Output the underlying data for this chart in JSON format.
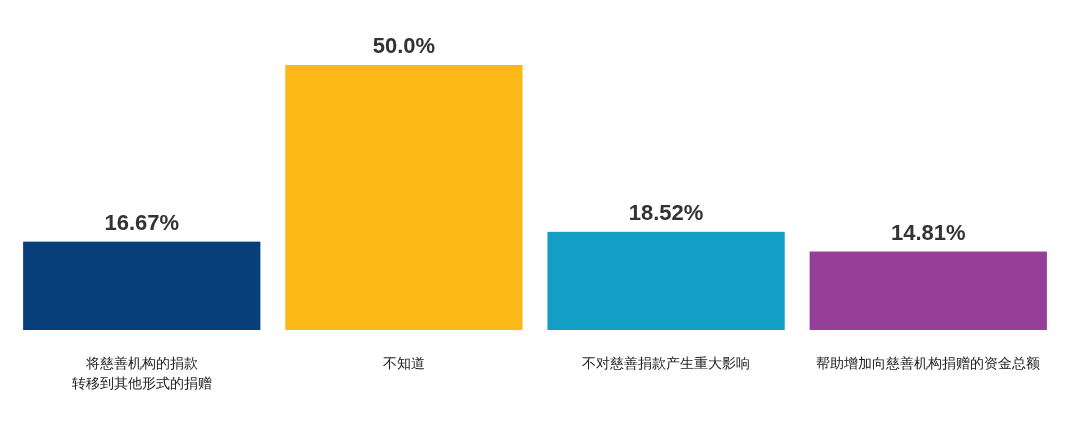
{
  "chart_data": {
    "type": "bar",
    "categories": [
      "将慈善机构的捐款转移到其他形式的捐赠",
      "不知道",
      "不对慈善捐款产生重大影响",
      "帮助增加向慈善机构捐赠的资金总额"
    ],
    "values": [
      16.67,
      50.0,
      18.52,
      14.81
    ],
    "colors": [
      "#063f7a",
      "#fbb816",
      "#139fc5",
      "#963f98"
    ],
    "value_labels": [
      "16.67%",
      "50.0%",
      "18.52%",
      "14.81%"
    ]
  }
}
